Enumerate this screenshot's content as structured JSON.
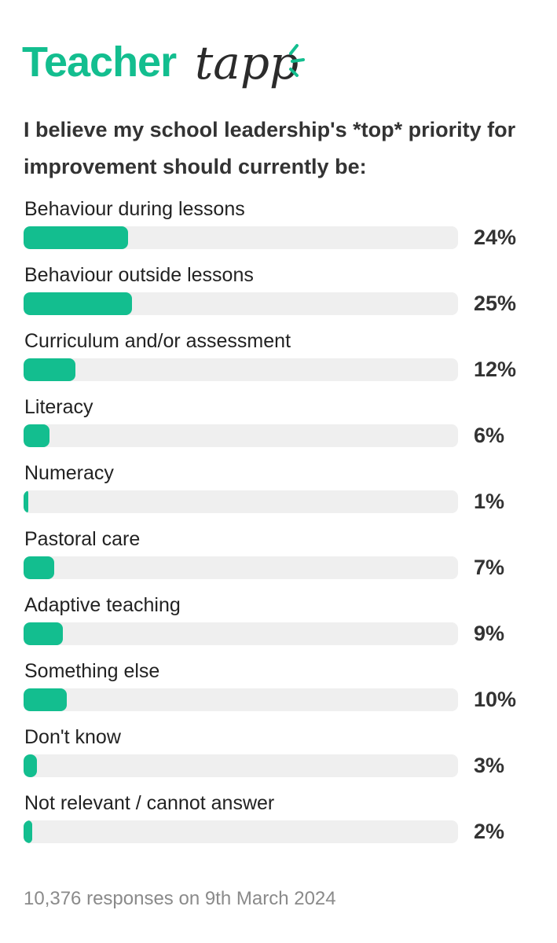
{
  "logo_bold": "Teacher",
  "logo_script": "tapp",
  "chart_data": {
    "type": "bar",
    "title": "I believe my school leadership's *top* priority for improvement should currently be:",
    "categories": [
      "Behaviour during lessons",
      "Behaviour outside lessons",
      "Curriculum and/or assessment",
      "Literacy",
      "Numeracy",
      "Pastoral care",
      "Adaptive teaching",
      "Something else",
      "Don't know",
      "Not relevant / cannot answer"
    ],
    "values": [
      24,
      25,
      12,
      6,
      1,
      7,
      9,
      10,
      3,
      2
    ],
    "value_labels": [
      "24%",
      "25%",
      "12%",
      "6%",
      "1%",
      "7%",
      "9%",
      "10%",
      "3%",
      "2%"
    ],
    "color": "#13be8f",
    "xlim": [
      0,
      100
    ],
    "footnote": "10,376 responses on 9th March 2024"
  }
}
